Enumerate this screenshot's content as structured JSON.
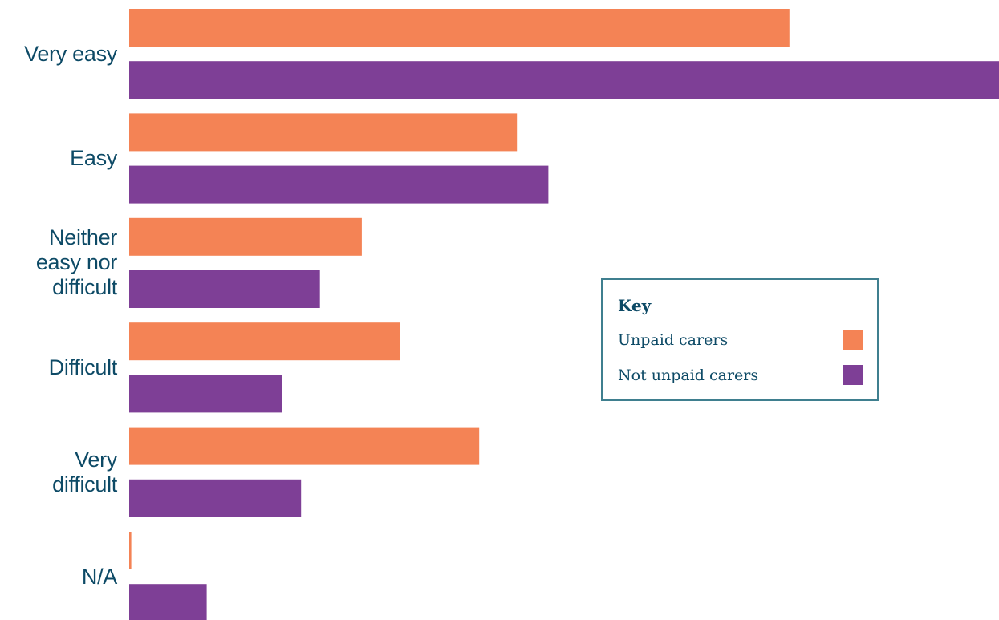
{
  "chart_data": {
    "type": "bar",
    "orientation": "horizontal",
    "categories": [
      "Very easy",
      "Easy",
      "Neither easy nor difficult",
      "Difficult",
      "Very difficult",
      "N/A"
    ],
    "category_label_lines": [
      [
        "Very easy"
      ],
      [
        "Easy"
      ],
      [
        "Neither",
        "easy nor",
        "difficult"
      ],
      [
        "Difficult"
      ],
      [
        "Very",
        "difficult"
      ],
      [
        "N/A"
      ]
    ],
    "series": [
      {
        "name": "Unpaid carers",
        "color": "#F48355",
        "values": [
          31.5,
          18.5,
          11.1,
          12.9,
          16.7,
          0.1
        ]
      },
      {
        "name": "Not unpaid carers",
        "color": "#7E3F96",
        "values": [
          41.5,
          20.0,
          9.1,
          7.3,
          8.2,
          3.7
        ]
      }
    ],
    "xlim": [
      0,
      41.5
    ],
    "legend": {
      "title": "Key",
      "placement": "center-right"
    },
    "grid": false
  }
}
